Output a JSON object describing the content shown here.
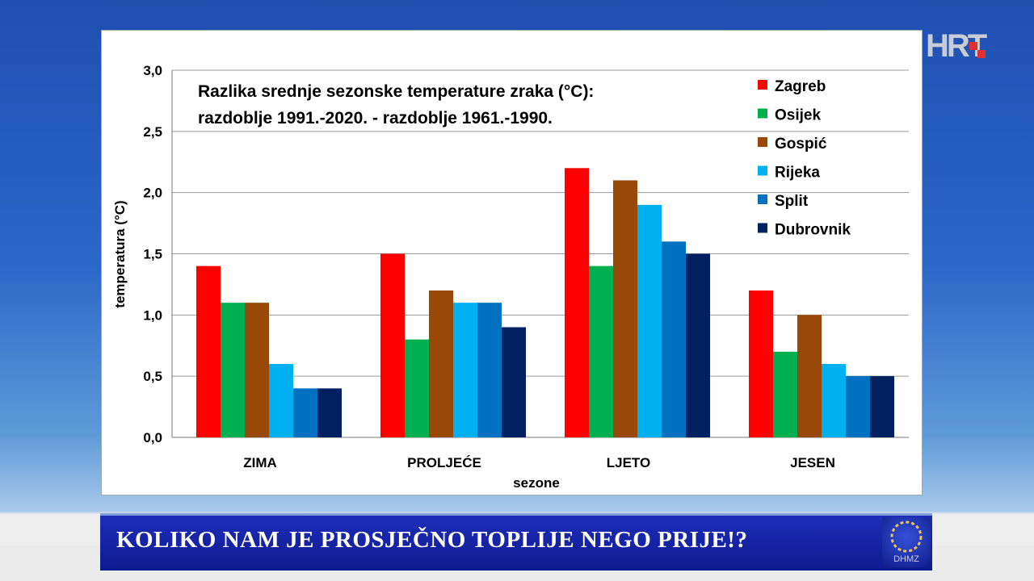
{
  "overlay": {
    "channel_logo": "HRT",
    "banner_text": "KOLIKO NAM JE PROSJEČNO TOPLIJE NEGO PRIJE!?",
    "agency_logo": "DHMZ"
  },
  "chart_data": {
    "type": "bar",
    "title": [
      "Razlika srednje sezonske temperature zraka (°C):",
      "razdoblje 1991.-2020.  -  razdoblje 1961.-1990."
    ],
    "xlabel": "sezone",
    "ylabel": "temperatura (°C)",
    "ylim": [
      0,
      3.0
    ],
    "yticks": [
      "0,0",
      "0,5",
      "1,0",
      "1,5",
      "2,0",
      "2,5",
      "3,0"
    ],
    "grid": true,
    "legend": "top-right",
    "categories": [
      "ZIMA",
      "PROLJEĆE",
      "LJETO",
      "JESEN"
    ],
    "series": [
      {
        "name": "Zagreb",
        "color": "#ff0000",
        "values": [
          1.4,
          1.5,
          2.2,
          1.2
        ]
      },
      {
        "name": "Osijek",
        "color": "#00b050",
        "values": [
          1.1,
          0.8,
          1.4,
          0.7
        ]
      },
      {
        "name": "Gospić",
        "color": "#984807",
        "values": [
          1.1,
          1.2,
          2.1,
          1.0
        ]
      },
      {
        "name": "Rijeka",
        "color": "#00b0f0",
        "values": [
          0.6,
          1.1,
          1.9,
          0.6
        ]
      },
      {
        "name": "Split",
        "color": "#0070c0",
        "values": [
          0.4,
          1.1,
          1.6,
          0.5
        ]
      },
      {
        "name": "Dubrovnik",
        "color": "#002060",
        "values": [
          0.4,
          0.9,
          1.5,
          0.5
        ]
      }
    ]
  }
}
